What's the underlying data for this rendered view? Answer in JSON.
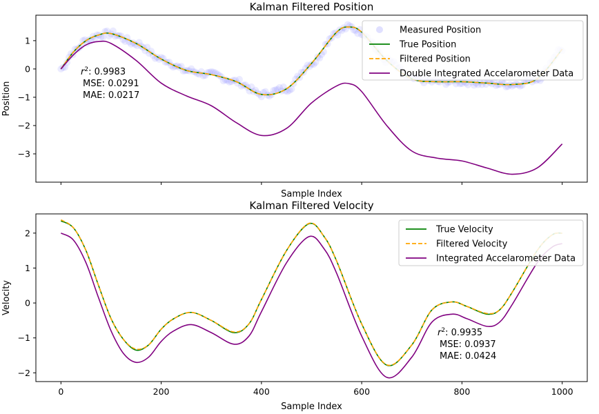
{
  "chart_data": [
    {
      "type": "line",
      "title": "Kalman Filtered Position",
      "xlabel": "Sample Index",
      "ylabel": "Position",
      "xlim": [
        -50,
        1050
      ],
      "ylim": [
        -4.0,
        1.9
      ],
      "x_ticks": [
        0,
        200,
        400,
        600,
        800,
        1000
      ],
      "y_ticks": [
        1,
        0,
        -1,
        -2,
        -3
      ],
      "y_tick_labels": [
        "1",
        "0",
        "−1",
        "−2",
        "−3"
      ],
      "grid": false,
      "legend_position": "top-right",
      "annotation": {
        "lines": [
          "r²: 0.9983",
          "MSE: 0.0291",
          "MAE: 0.0217"
        ]
      },
      "x": [
        0,
        25,
        50,
        75,
        100,
        150,
        200,
        250,
        300,
        350,
        400,
        450,
        500,
        550,
        575,
        600,
        650,
        700,
        750,
        800,
        850,
        900,
        950,
        1000
      ],
      "series": [
        {
          "name": "Measured Position",
          "style": "scatter",
          "color": "#6666ff",
          "values": [
            0.0,
            0.6,
            1.0,
            1.2,
            1.25,
            0.9,
            0.35,
            -0.05,
            -0.2,
            -0.45,
            -0.9,
            -0.7,
            0.2,
            1.3,
            1.48,
            1.3,
            0.3,
            -0.35,
            -0.45,
            -0.45,
            -0.5,
            -0.55,
            -0.35,
            0.7
          ]
        },
        {
          "name": "True Position",
          "style": "solid",
          "color": "#008000",
          "values": [
            0.0,
            0.6,
            1.0,
            1.2,
            1.25,
            0.9,
            0.35,
            -0.05,
            -0.2,
            -0.45,
            -0.9,
            -0.7,
            0.2,
            1.3,
            1.48,
            1.3,
            0.3,
            -0.35,
            -0.45,
            -0.45,
            -0.5,
            -0.55,
            -0.35,
            0.7
          ]
        },
        {
          "name": "Filtered Position",
          "style": "dashed",
          "color": "#ffa500",
          "values": [
            0.0,
            0.6,
            1.0,
            1.2,
            1.25,
            0.9,
            0.35,
            -0.05,
            -0.2,
            -0.45,
            -0.9,
            -0.7,
            0.2,
            1.3,
            1.48,
            1.3,
            0.3,
            -0.35,
            -0.45,
            -0.45,
            -0.5,
            -0.55,
            -0.35,
            0.7
          ]
        },
        {
          "name": "Double Integrated Accelarometer Data",
          "style": "solid",
          "color": "#800080",
          "values": [
            0.0,
            0.5,
            0.85,
            0.97,
            0.9,
            0.3,
            -0.5,
            -0.95,
            -1.3,
            -1.9,
            -2.35,
            -2.1,
            -1.2,
            -0.6,
            -0.52,
            -0.8,
            -2.0,
            -2.9,
            -3.15,
            -3.25,
            -3.5,
            -3.72,
            -3.5,
            -2.65
          ]
        }
      ]
    },
    {
      "type": "line",
      "title": "Kalman Filtered Velocity",
      "xlabel": "Sample Index",
      "ylabel": "Velocity",
      "xlim": [
        -50,
        1050
      ],
      "ylim": [
        -2.25,
        2.55
      ],
      "x_ticks": [
        0,
        200,
        400,
        600,
        800,
        1000
      ],
      "x_tick_labels": [
        "0",
        "200",
        "400",
        "600",
        "800",
        "1000"
      ],
      "y_ticks": [
        2,
        1,
        0,
        -1,
        -2
      ],
      "y_tick_labels": [
        "2",
        "1",
        "0",
        "−1",
        "−2"
      ],
      "grid": false,
      "legend_position": "top-right",
      "annotation": {
        "lines": [
          "r²: 0.9935",
          "MSE: 0.0937",
          "MAE: 0.0424"
        ]
      },
      "x": [
        0,
        25,
        50,
        75,
        100,
        125,
        150,
        175,
        200,
        225,
        260,
        300,
        345,
        375,
        400,
        450,
        495,
        525,
        550,
        600,
        650,
        700,
        740,
        780,
        810,
        850,
        875,
        900,
        950,
        980,
        1000
      ],
      "series": [
        {
          "name": "True Velocity",
          "style": "solid",
          "color": "#008000",
          "values": [
            2.35,
            2.15,
            1.5,
            0.5,
            -0.45,
            -1.05,
            -1.35,
            -1.2,
            -0.75,
            -0.45,
            -0.27,
            -0.5,
            -0.85,
            -0.6,
            0.1,
            1.5,
            2.27,
            1.9,
            1.2,
            -0.6,
            -1.78,
            -1.2,
            -0.2,
            0.03,
            -0.1,
            -0.32,
            -0.2,
            0.3,
            1.5,
            1.95,
            2.0
          ]
        },
        {
          "name": "Filtered Velocity",
          "style": "dashed",
          "color": "#ffa500",
          "values": [
            2.38,
            2.15,
            1.5,
            0.5,
            -0.45,
            -1.05,
            -1.32,
            -1.2,
            -0.75,
            -0.45,
            -0.27,
            -0.5,
            -0.83,
            -0.6,
            0.1,
            1.5,
            2.28,
            1.9,
            1.2,
            -0.6,
            -1.77,
            -1.2,
            -0.2,
            0.03,
            -0.1,
            -0.3,
            -0.2,
            0.3,
            1.5,
            1.95,
            2.0
          ]
        },
        {
          "name": "Integrated Accelarometer Data",
          "style": "solid",
          "color": "#800080",
          "values": [
            2.0,
            1.8,
            1.15,
            0.15,
            -0.8,
            -1.45,
            -1.7,
            -1.55,
            -1.1,
            -0.8,
            -0.62,
            -0.85,
            -1.18,
            -0.95,
            -0.25,
            1.15,
            1.9,
            1.55,
            0.85,
            -0.95,
            -2.13,
            -1.55,
            -0.55,
            -0.32,
            -0.45,
            -0.67,
            -0.55,
            -0.05,
            1.15,
            1.6,
            1.7
          ]
        }
      ]
    }
  ]
}
